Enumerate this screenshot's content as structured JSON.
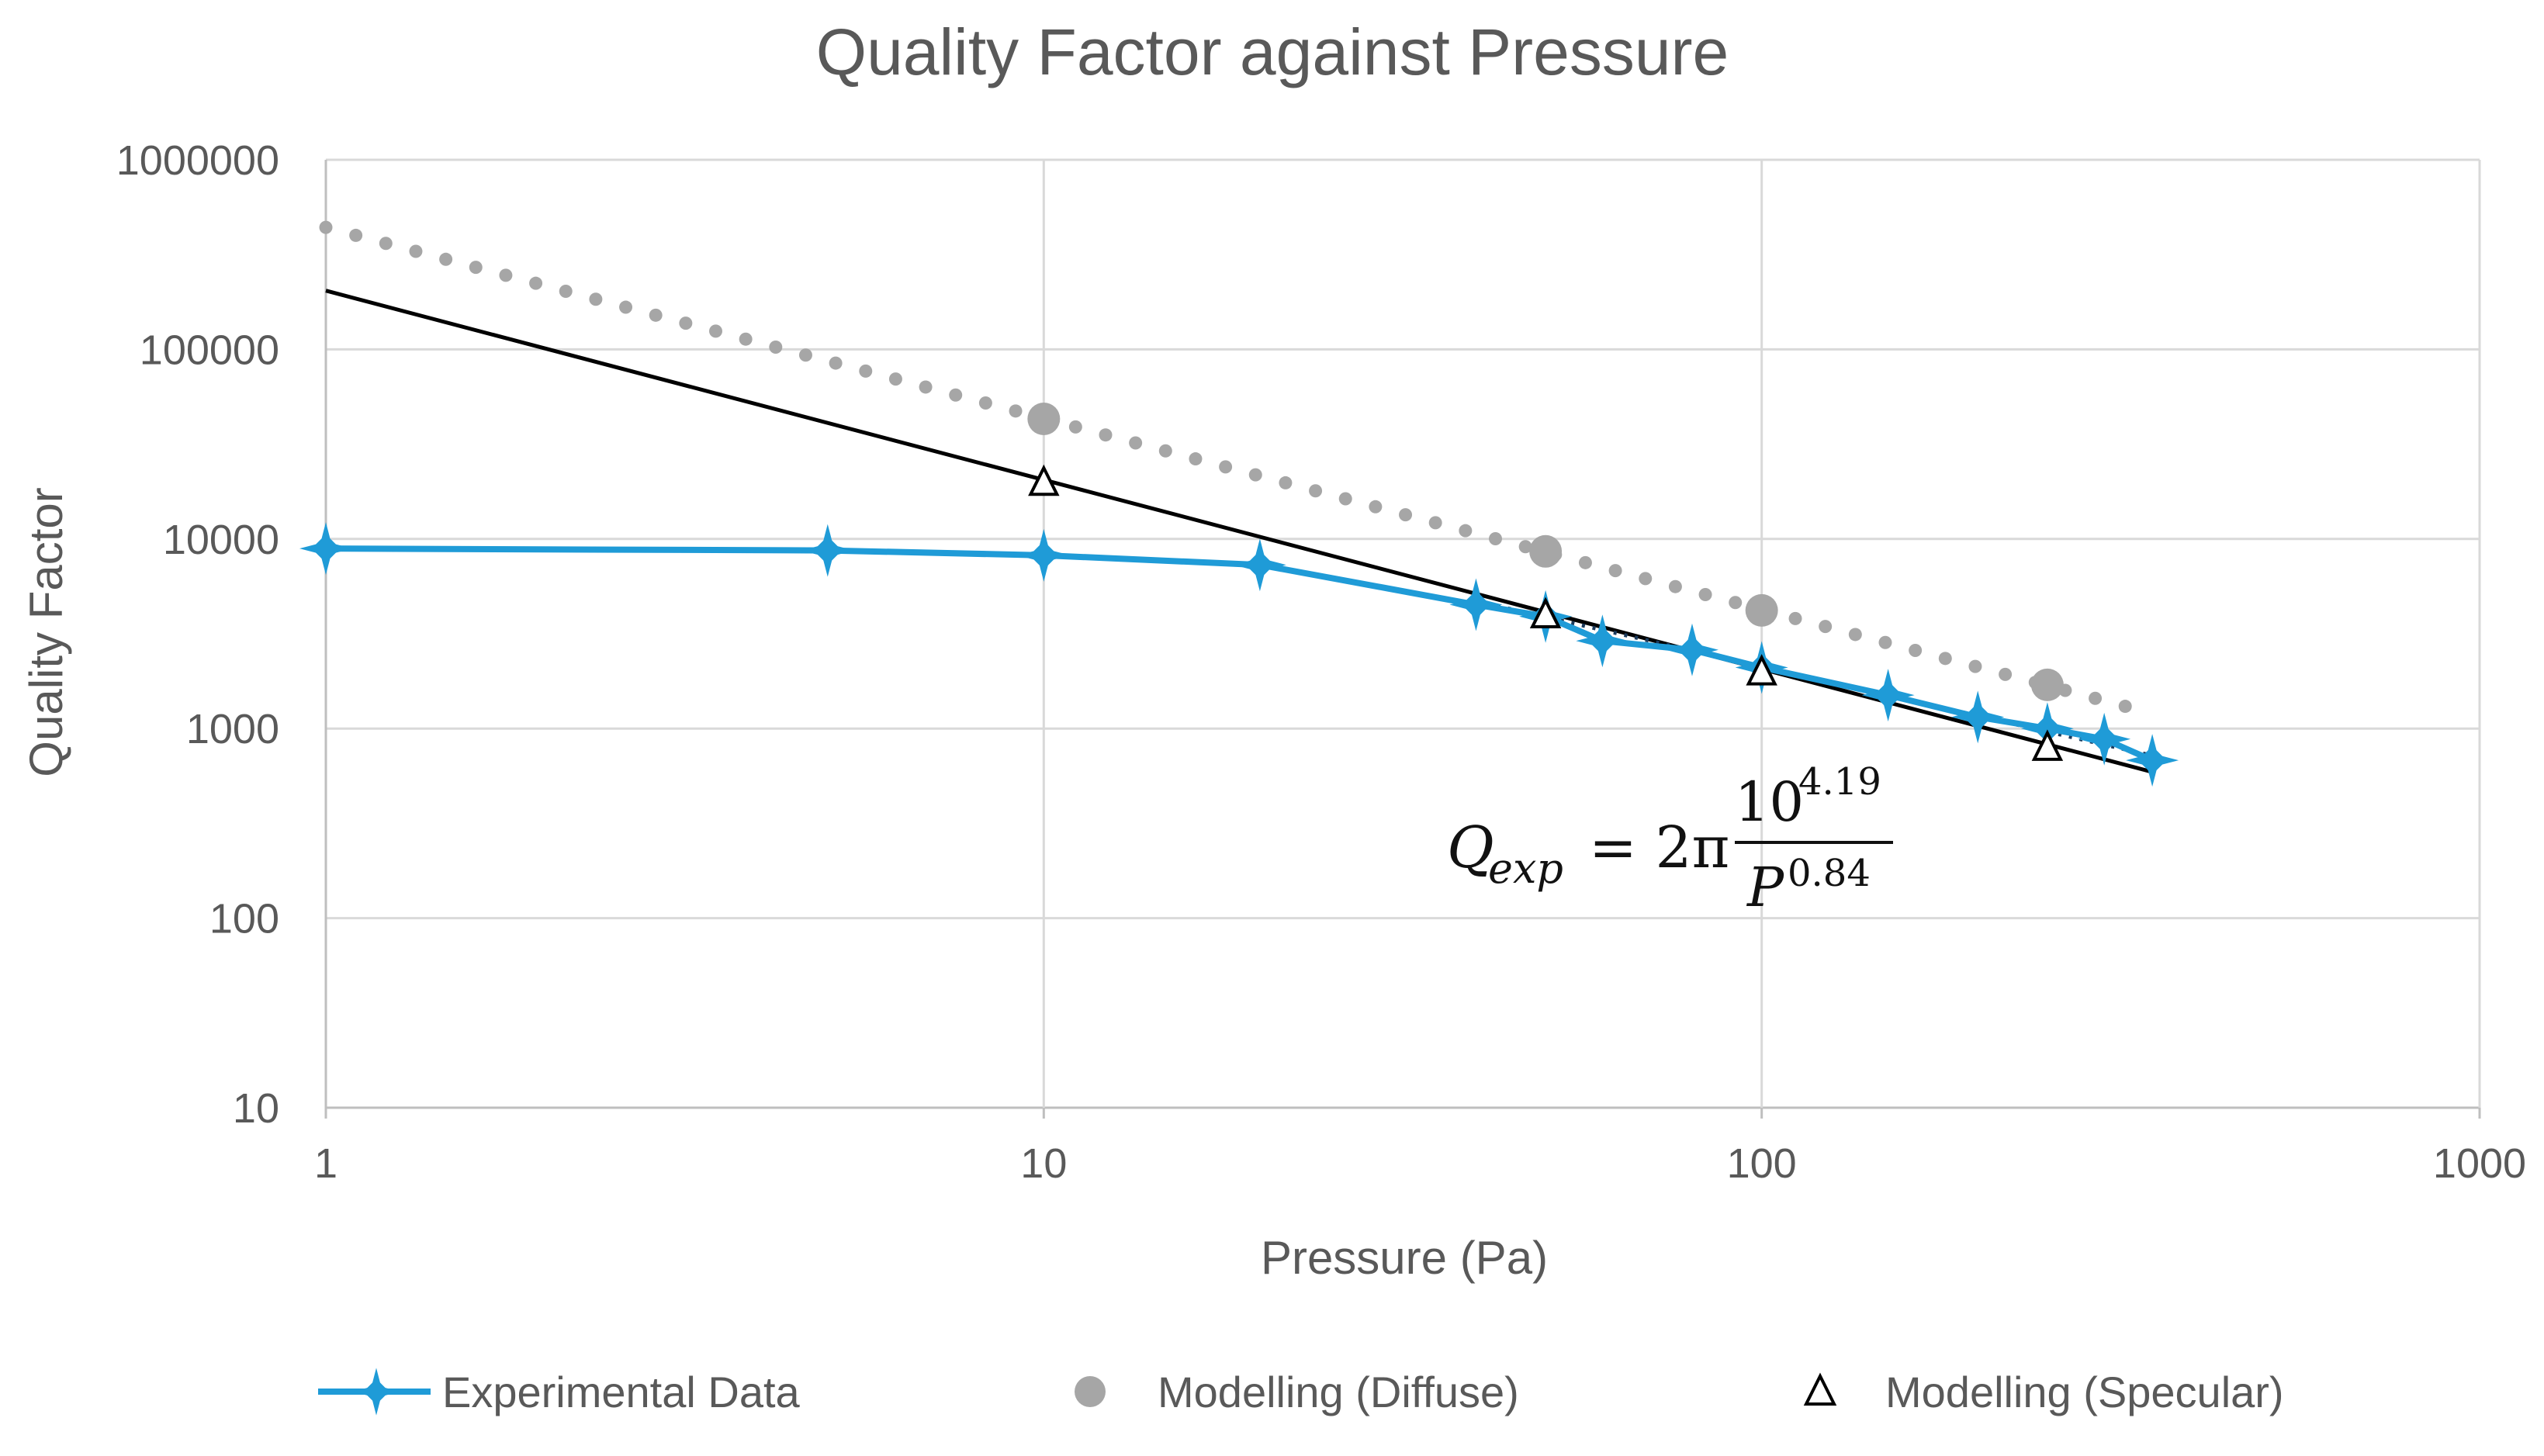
{
  "colors": {
    "experimental": "#1f9bd7",
    "diffuse": "#a6a6a6",
    "specular": "#000000",
    "fit_line": "#000000",
    "grid": "#d9d9d9",
    "text": "#595959"
  },
  "equation": {
    "lhs": "Q",
    "lhs_sub": "exp",
    "equals": "= 2π",
    "numerator_base": "10",
    "numerator_exp": "4.19",
    "denominator_base": "P",
    "denominator_exp": "0.84"
  },
  "chart_data": {
    "type": "scatter",
    "title": "Quality Factor against Pressure",
    "xlabel": "Pressure (Pa)",
    "ylabel": "Quality Factor",
    "x_scale": "log",
    "y_scale": "log",
    "xlim": [
      1,
      1000
    ],
    "ylim": [
      10,
      1000000
    ],
    "x_ticks": [
      "1",
      "10",
      "100",
      "1000"
    ],
    "y_ticks": [
      "10",
      "100",
      "1000",
      "10000",
      "100000",
      "1000000"
    ],
    "grid": true,
    "legend_position": "bottom",
    "series": [
      {
        "name": "Experimental Data",
        "style": "line-with-star-markers",
        "x": [
          1,
          5,
          10,
          20,
          40,
          50,
          60,
          80,
          100,
          150,
          200,
          250,
          300,
          350
        ],
        "y": [
          8900,
          8700,
          8200,
          7300,
          4500,
          3900,
          2900,
          2600,
          2100,
          1500,
          1150,
          1000,
          880,
          680
        ]
      },
      {
        "name": "Modelling (Diffuse)",
        "style": "grey-circle-markers",
        "x": [
          10,
          50,
          100,
          250
        ],
        "y": [
          43000,
          8600,
          4200,
          1700
        ]
      },
      {
        "name": "Modelling (Specular)",
        "style": "hollow-triangle-markers",
        "x": [
          10,
          50,
          100,
          250
        ],
        "y": [
          20000,
          4000,
          2000,
          800
        ]
      }
    ],
    "trendlines": [
      {
        "kind": "power-fit",
        "style": "solid-black",
        "x": [
          1,
          350
        ],
        "y": [
          204000,
          590
        ]
      },
      {
        "kind": "diffuse-extrapolation",
        "style": "grey-dotted",
        "x": [
          1,
          350
        ],
        "y": [
          440000,
          1200
        ]
      },
      {
        "kind": "experimental-high-pressure-fit",
        "style": "dark-dotted",
        "x": [
          40,
          350
        ],
        "y": [
          4700,
          720
        ]
      }
    ]
  }
}
